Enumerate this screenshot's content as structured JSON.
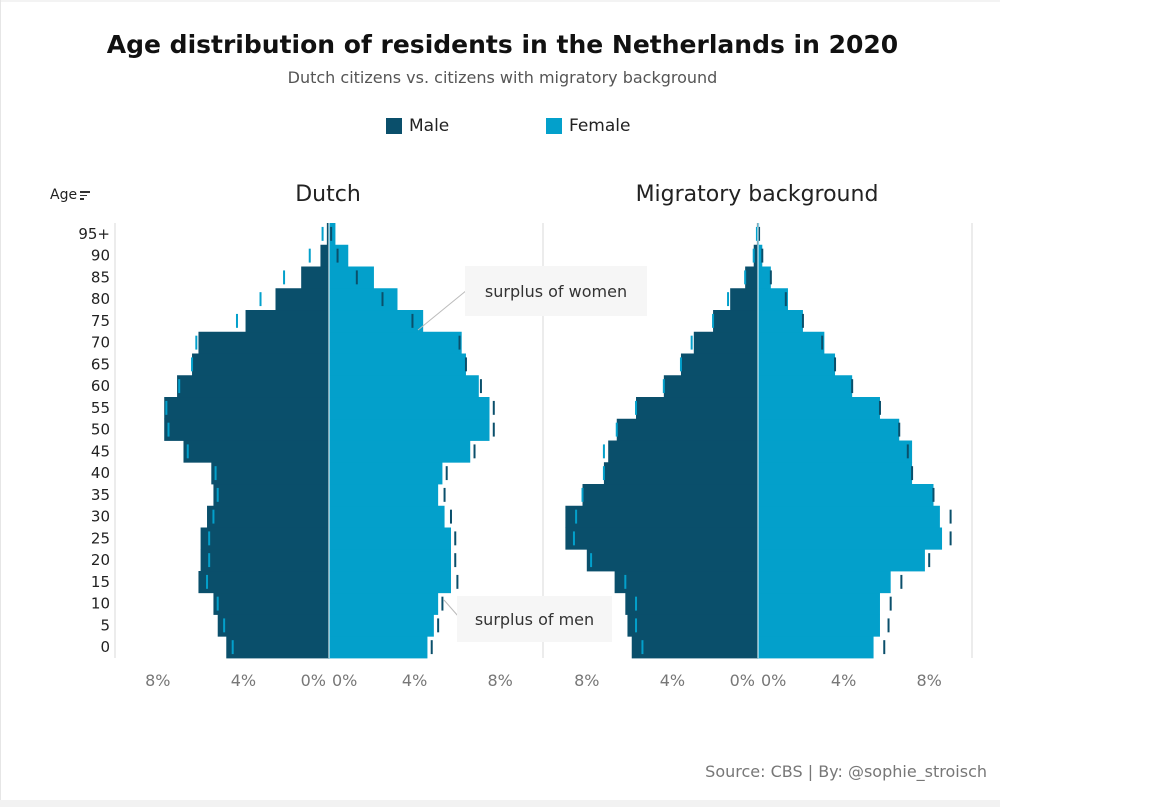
{
  "chart_data": {
    "type": "bar",
    "title": "Age distribution of residents in the Netherlands in 2020",
    "subtitle": "Dutch citizens vs. citizens with migratory background",
    "legend": [
      {
        "name": "Male",
        "color": "#0a4f6b"
      },
      {
        "name": "Female",
        "color": "#03a0cb"
      }
    ],
    "ylabel": "Age",
    "categories": [
      "0",
      "5",
      "10",
      "15",
      "20",
      "25",
      "30",
      "35",
      "40",
      "45",
      "50",
      "55",
      "60",
      "65",
      "70",
      "75",
      "80",
      "85",
      "90",
      "95+"
    ],
    "xlim": [
      -10,
      10
    ],
    "x_ticks": [
      "8%",
      "4%",
      "0%"
    ],
    "x_ticks_right": [
      "0%",
      "4%",
      "8%"
    ],
    "panels": [
      {
        "name": "Dutch",
        "male": [
          4.8,
          5.2,
          5.4,
          6.1,
          6.0,
          6.0,
          5.7,
          5.4,
          5.5,
          6.8,
          7.7,
          7.7,
          7.1,
          6.4,
          6.1,
          3.9,
          2.5,
          1.3,
          0.4,
          0.1
        ],
        "female": [
          4.6,
          4.9,
          5.1,
          5.7,
          5.7,
          5.7,
          5.4,
          5.1,
          5.3,
          6.6,
          7.5,
          7.5,
          7.0,
          6.4,
          6.2,
          4.4,
          3.2,
          2.1,
          0.9,
          0.3
        ],
        "ref_male": [
          4.5,
          4.9,
          5.2,
          5.7,
          5.6,
          5.6,
          5.4,
          5.2,
          5.3,
          6.6,
          7.5,
          7.6,
          7.0,
          6.4,
          6.2,
          4.3,
          3.2,
          2.1,
          0.9,
          0.3
        ],
        "ref_female": [
          4.8,
          5.1,
          5.3,
          6.0,
          5.9,
          5.9,
          5.7,
          5.4,
          5.5,
          6.8,
          7.7,
          7.7,
          7.1,
          6.4,
          6.1,
          3.9,
          2.5,
          1.3,
          0.4,
          0.1
        ]
      },
      {
        "name": "Migratory background",
        "male": [
          5.9,
          6.1,
          6.2,
          6.7,
          8.0,
          9.0,
          9.0,
          8.2,
          7.2,
          7.0,
          6.6,
          5.7,
          4.4,
          3.6,
          3.0,
          2.1,
          1.3,
          0.6,
          0.2,
          0.05
        ],
        "female": [
          5.4,
          5.7,
          5.7,
          6.2,
          7.8,
          8.6,
          8.5,
          8.2,
          7.2,
          7.2,
          6.6,
          5.7,
          4.4,
          3.6,
          3.1,
          2.1,
          1.4,
          0.6,
          0.2,
          0.05
        ],
        "ref_male": [
          5.4,
          5.7,
          5.7,
          6.2,
          7.8,
          8.6,
          8.5,
          8.2,
          7.2,
          7.2,
          6.6,
          5.7,
          4.4,
          3.6,
          3.1,
          2.1,
          1.4,
          0.6,
          0.2,
          0.05
        ],
        "ref_female": [
          5.9,
          6.1,
          6.2,
          6.7,
          8.0,
          9.0,
          9.0,
          8.2,
          7.2,
          7.0,
          6.6,
          5.7,
          4.4,
          3.6,
          3.0,
          2.1,
          1.3,
          0.6,
          0.2,
          0.05
        ]
      }
    ],
    "annotations": [
      "surplus of women",
      "surplus of men"
    ]
  },
  "header": {
    "title": "Age distribution of residents in the Netherlands in 2020",
    "subtitle": "Dutch citizens vs. citizens with migratory background"
  },
  "legend": {
    "male_label": "Male",
    "female_label": "Female"
  },
  "axis": {
    "age_label": "Age"
  },
  "panels": {
    "dutch_title": "Dutch",
    "migratory_title": "Migratory background"
  },
  "annotations": {
    "women": "surplus of women",
    "men": "surplus of men"
  },
  "footer": {
    "source": "Source: CBS  |  By: @sophie_stroisch"
  },
  "colors": {
    "male": "#0a4f6b",
    "female": "#03a0cb"
  }
}
